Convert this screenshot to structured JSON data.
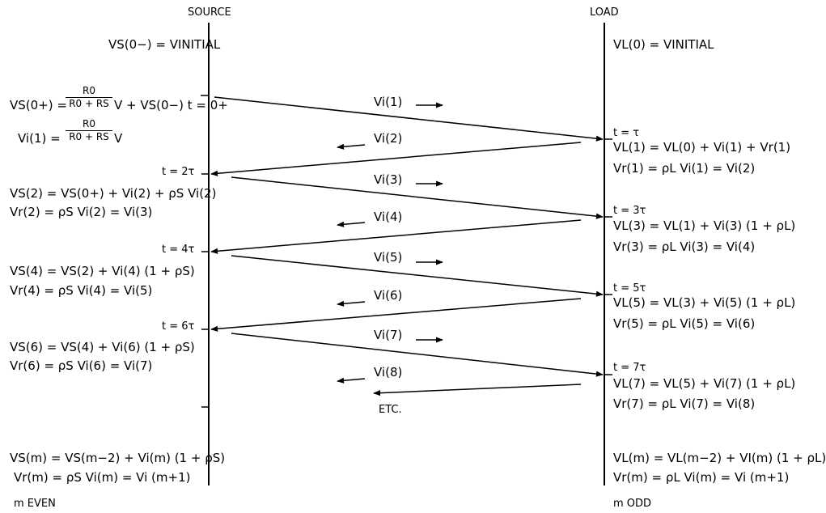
{
  "header": {
    "source": "SOURCE",
    "load": "LOAD"
  },
  "source_side": {
    "vs_initial": "VS(0−) = VINITIAL",
    "vs_0plus_lhs": "VS(0+) =",
    "frac_num": "R0",
    "frac_den": "R0 + RS",
    "vs_0plus_rhs": "V + VS(0−) t = 0+",
    "vi1_lhs": "Vi(1) =",
    "vi1_rhs": "V",
    "t2": "t = 2τ",
    "vs2": "VS(2) = VS(0+) + Vi(2) + ρS Vi(2)",
    "vr2": "Vr(2) = ρS Vi(2) = Vi(3)",
    "t4": "t = 4τ",
    "vs4": "VS(4) = VS(2) + Vi(4) (1 + ρS)",
    "vr4": "Vr(4) = ρS Vi(4) = Vi(5)",
    "t6": "t = 6τ",
    "vs6": "VS(6) = VS(4) + Vi(6) (1 + ρS)",
    "vr6": "Vr(6) = ρS Vi(6) = Vi(7)",
    "vsm": "VS(m) = VS(m−2) + Vi(m) (1 + ρS)",
    "vrm": "Vr(m) = ρS Vi(m) = Vi (m+1)",
    "footer": "m EVEN"
  },
  "load_side": {
    "vl_initial": "VL(0) = VINITIAL",
    "t1": "t = τ",
    "vl1": "VL(1) = VL(0) + Vi(1) + Vr(1)",
    "vr1": "Vr(1) = ρL Vi(1) = Vi(2)",
    "t3": "t = 3τ",
    "vl3": "VL(3) = VL(1) + Vi(3) (1 + ρL)",
    "vr3": "Vr(3) = ρL Vi(3) = Vi(4)",
    "t5": "t = 5τ",
    "vl5": "VL(5) = VL(3) + Vi(5) (1 + ρL)",
    "vr5": "Vr(5) = ρL Vi(5) = Vi(6)",
    "t7": "t = 7τ",
    "vl7": "VL(7) = VL(5) + Vi(7) (1 + ρL)",
    "vr7": "Vr(7) = ρL Vi(7) = Vi(8)",
    "vlm": "VL(m) = VL(m−2) + VI(m) (1 + ρL)",
    "vrm": "Vr(m) = ρL Vi(m) = Vi (m+1)",
    "footer": "m ODD"
  },
  "waves": {
    "w1": "Vi(1)",
    "w2": "Vi(2)",
    "w3": "Vi(3)",
    "w4": "Vi(4)",
    "w5": "Vi(5)",
    "w6": "Vi(6)",
    "w7": "Vi(7)",
    "w8": "Vi(8)",
    "etc": "ETC."
  }
}
